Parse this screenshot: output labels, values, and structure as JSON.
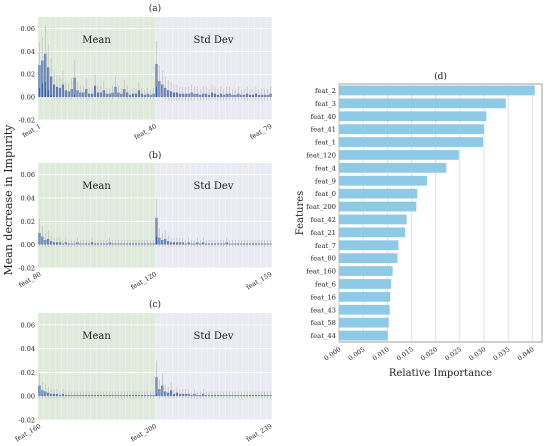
{
  "chart_data": [
    {
      "panel": "(a)",
      "type": "bar",
      "x_tick_labels": [
        "feat_1",
        "feat_40",
        "feat_79"
      ],
      "ylim": [
        -0.02,
        0.07
      ],
      "yticks": [
        "-0.02",
        "0.00",
        "0.02",
        "0.04",
        "0.06"
      ],
      "region_labels": [
        "Mean",
        "Std Dev"
      ],
      "region_split": 40,
      "n_bars": 80,
      "values": [
        0.028,
        0.032,
        0.038,
        0.026,
        0.018,
        0.011,
        0.009,
        0.008,
        0.011,
        0.006,
        0.005,
        0.007,
        0.017,
        0.006,
        0.004,
        0.004,
        0.007,
        0.003,
        0.003,
        0.01,
        0.004,
        0.004,
        0.006,
        0.003,
        0.003,
        0.004,
        0.009,
        0.004,
        0.003,
        0.007,
        0.004,
        0.002,
        0.003,
        0.003,
        0.006,
        0.003,
        0.002,
        0.003,
        0.002,
        0.003,
        0.029,
        0.014,
        0.011,
        0.008,
        0.006,
        0.005,
        0.004,
        0.004,
        0.003,
        0.003,
        0.003,
        0.003,
        0.004,
        0.003,
        0.003,
        0.002,
        0.003,
        0.003,
        0.002,
        0.004,
        0.003,
        0.002,
        0.003,
        0.002,
        0.003,
        0.003,
        0.002,
        0.002,
        0.003,
        0.002,
        0.002,
        0.003,
        0.002,
        0.002,
        0.003,
        0.002,
        0.002,
        0.002,
        0.002,
        0.003
      ],
      "errors": [
        0.02,
        0.02,
        0.025,
        0.02,
        0.016,
        0.012,
        0.01,
        0.01,
        0.012,
        0.008,
        0.007,
        0.009,
        0.015,
        0.008,
        0.006,
        0.006,
        0.009,
        0.005,
        0.005,
        0.01,
        0.006,
        0.006,
        0.008,
        0.005,
        0.005,
        0.006,
        0.009,
        0.006,
        0.005,
        0.008,
        0.006,
        0.004,
        0.005,
        0.005,
        0.007,
        0.005,
        0.004,
        0.005,
        0.004,
        0.005,
        0.02,
        0.014,
        0.012,
        0.01,
        0.009,
        0.008,
        0.007,
        0.007,
        0.006,
        0.006,
        0.006,
        0.006,
        0.007,
        0.006,
        0.006,
        0.005,
        0.006,
        0.006,
        0.005,
        0.007,
        0.006,
        0.005,
        0.006,
        0.005,
        0.006,
        0.006,
        0.005,
        0.005,
        0.006,
        0.005,
        0.005,
        0.006,
        0.005,
        0.005,
        0.006,
        0.005,
        0.005,
        0.005,
        0.005,
        0.006
      ]
    },
    {
      "panel": "(b)",
      "type": "bar",
      "x_tick_labels": [
        "feat_80",
        "feat_120",
        "feat_159"
      ],
      "ylim": [
        -0.02,
        0.07
      ],
      "yticks": [
        "-0.02",
        "0.00",
        "0.02",
        "0.04",
        "0.06"
      ],
      "region_labels": [
        "Mean",
        "Std Dev"
      ],
      "region_split": 40,
      "n_bars": 80,
      "values": [
        0.01,
        0.007,
        0.004,
        0.005,
        0.003,
        0.002,
        0.002,
        0.002,
        0.001,
        0.002,
        0.001,
        0.001,
        0.001,
        0.002,
        0.001,
        0.001,
        0.001,
        0.001,
        0.002,
        0.001,
        0.001,
        0.001,
        0.001,
        0.001,
        0.002,
        0.001,
        0.001,
        0.001,
        0.001,
        0.001,
        0.001,
        0.001,
        0.001,
        0.001,
        0.001,
        0.001,
        0.001,
        0.001,
        0.001,
        0.001,
        0.023,
        0.006,
        0.004,
        0.005,
        0.003,
        0.002,
        0.002,
        0.002,
        0.002,
        0.002,
        0.001,
        0.002,
        0.001,
        0.001,
        0.002,
        0.001,
        0.002,
        0.001,
        0.001,
        0.001,
        0.001,
        0.001,
        0.001,
        0.001,
        0.002,
        0.001,
        0.001,
        0.001,
        0.001,
        0.001,
        0.001,
        0.001,
        0.001,
        0.001,
        0.001,
        0.001,
        0.001,
        0.001,
        0.001,
        0.001
      ],
      "errors": [
        0.012,
        0.009,
        0.006,
        0.007,
        0.005,
        0.004,
        0.004,
        0.004,
        0.003,
        0.004,
        0.003,
        0.003,
        0.003,
        0.004,
        0.003,
        0.003,
        0.003,
        0.003,
        0.004,
        0.003,
        0.003,
        0.003,
        0.003,
        0.003,
        0.004,
        0.003,
        0.003,
        0.003,
        0.003,
        0.003,
        0.003,
        0.003,
        0.003,
        0.003,
        0.003,
        0.003,
        0.003,
        0.003,
        0.003,
        0.003,
        0.016,
        0.008,
        0.006,
        0.007,
        0.005,
        0.004,
        0.004,
        0.004,
        0.004,
        0.004,
        0.003,
        0.004,
        0.003,
        0.003,
        0.004,
        0.003,
        0.004,
        0.003,
        0.003,
        0.003,
        0.003,
        0.003,
        0.003,
        0.003,
        0.004,
        0.003,
        0.003,
        0.003,
        0.003,
        0.003,
        0.003,
        0.003,
        0.003,
        0.003,
        0.003,
        0.003,
        0.003,
        0.003,
        0.003,
        0.003
      ]
    },
    {
      "panel": "(c)",
      "type": "bar",
      "x_tick_labels": [
        "feat_160",
        "feat_200",
        "feat_239"
      ],
      "ylim": [
        -0.02,
        0.07
      ],
      "yticks": [
        "-0.02",
        "0.00",
        "0.02",
        "0.04",
        "0.06"
      ],
      "region_labels": [
        "Mean",
        "Std Dev"
      ],
      "region_split": 40,
      "n_bars": 80,
      "values": [
        0.009,
        0.005,
        0.004,
        0.003,
        0.002,
        0.002,
        0.002,
        0.001,
        0.002,
        0.001,
        0.001,
        0.001,
        0.001,
        0.001,
        0.001,
        0.001,
        0.001,
        0.001,
        0.001,
        0.001,
        0.001,
        0.001,
        0.001,
        0.001,
        0.001,
        0.001,
        0.001,
        0.001,
        0.001,
        0.001,
        0.001,
        0.001,
        0.001,
        0.001,
        0.001,
        0.001,
        0.001,
        0.001,
        0.001,
        0.001,
        0.016,
        0.006,
        0.009,
        0.004,
        0.003,
        0.005,
        0.002,
        0.003,
        0.002,
        0.002,
        0.002,
        0.002,
        0.001,
        0.002,
        0.001,
        0.001,
        0.002,
        0.001,
        0.001,
        0.001,
        0.001,
        0.001,
        0.001,
        0.001,
        0.001,
        0.001,
        0.001,
        0.001,
        0.001,
        0.001,
        0.001,
        0.001,
        0.001,
        0.001,
        0.001,
        0.001,
        0.001,
        0.001,
        0.001,
        0.001
      ],
      "errors": [
        0.011,
        0.007,
        0.006,
        0.005,
        0.004,
        0.004,
        0.004,
        0.003,
        0.004,
        0.003,
        0.003,
        0.003,
        0.003,
        0.003,
        0.003,
        0.003,
        0.003,
        0.003,
        0.003,
        0.003,
        0.003,
        0.003,
        0.003,
        0.003,
        0.003,
        0.003,
        0.003,
        0.003,
        0.003,
        0.003,
        0.003,
        0.003,
        0.003,
        0.003,
        0.003,
        0.003,
        0.003,
        0.003,
        0.003,
        0.003,
        0.014,
        0.008,
        0.01,
        0.006,
        0.005,
        0.007,
        0.004,
        0.005,
        0.004,
        0.004,
        0.004,
        0.004,
        0.003,
        0.004,
        0.003,
        0.003,
        0.004,
        0.003,
        0.003,
        0.003,
        0.003,
        0.003,
        0.003,
        0.003,
        0.003,
        0.003,
        0.003,
        0.003,
        0.003,
        0.003,
        0.003,
        0.003,
        0.003,
        0.003,
        0.003,
        0.003,
        0.003,
        0.003,
        0.003,
        0.003
      ]
    },
    {
      "panel": "(d)",
      "type": "bar",
      "orientation": "horizontal",
      "categories": [
        "feat_2",
        "feat_3",
        "feat_40",
        "feat_41",
        "feat_1",
        "feat_120",
        "feat_4",
        "feat_9",
        "feat_0",
        "feat_200",
        "feat_42",
        "feat_21",
        "feat_7",
        "feat_80",
        "feat_160",
        "feat_6",
        "feat_16",
        "feat_43",
        "feat_58",
        "feat_44"
      ],
      "values": [
        0.0405,
        0.0345,
        0.0305,
        0.03,
        0.0298,
        0.0248,
        0.0222,
        0.0182,
        0.0162,
        0.016,
        0.014,
        0.0137,
        0.0123,
        0.0121,
        0.0111,
        0.0108,
        0.0106,
        0.0105,
        0.0103,
        0.0101
      ],
      "xlim": [
        0,
        0.042
      ],
      "xticks": [
        "0.000",
        "0.005",
        "0.010",
        "0.015",
        "0.020",
        "0.025",
        "0.030",
        "0.035",
        "0.040"
      ],
      "xlabel": "Relative Importance",
      "ylabel": "Features"
    }
  ],
  "shared_ylabel": "Mean decrease in Impurity",
  "colors": {
    "bar": "#3a5fad",
    "error": "#b8b8b8",
    "mean_bg": "#dfe9dc",
    "std_bg": "#eaeaf2",
    "hbar": "#8ecae6",
    "grid": "#ffffff"
  }
}
